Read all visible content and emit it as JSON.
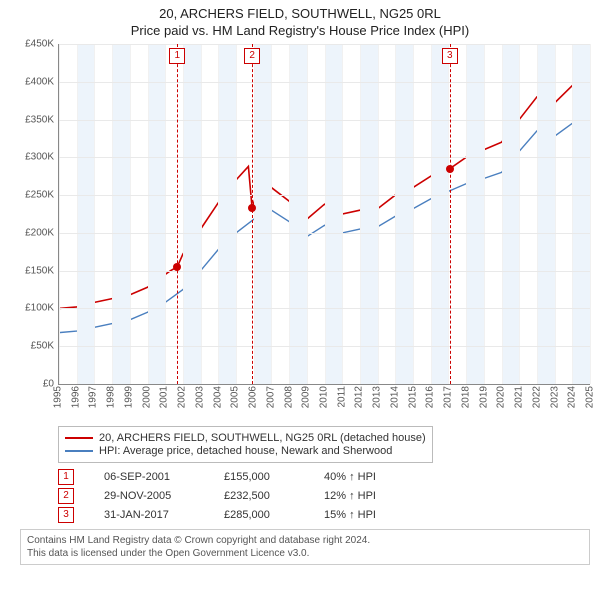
{
  "titles": {
    "line1": "20, ARCHERS FIELD, SOUTHWELL, NG25 0RL",
    "line2": "Price paid vs. HM Land Registry's House Price Index (HPI)"
  },
  "chart": {
    "type": "line",
    "background_color": "#ffffff",
    "grid_color": "#e9e9e9",
    "vgrid_color": "#f1f1f1",
    "band_color": "#edf4fb",
    "xlim": [
      1995,
      2025
    ],
    "ylim": [
      0,
      450000
    ],
    "ytick_step": 50000,
    "yticks": [
      "£0",
      "£50K",
      "£100K",
      "£150K",
      "£200K",
      "£250K",
      "£300K",
      "£350K",
      "£400K",
      "£450K"
    ],
    "xticks": [
      1995,
      1996,
      1997,
      1998,
      1999,
      2000,
      2001,
      2002,
      2003,
      2004,
      2005,
      2006,
      2007,
      2008,
      2009,
      2010,
      2011,
      2012,
      2013,
      2014,
      2015,
      2016,
      2017,
      2018,
      2019,
      2020,
      2021,
      2022,
      2023,
      2024,
      2025
    ],
    "label_fontsize": 10,
    "title_fontsize": 13,
    "line_width_red": 1.6,
    "line_width_blue": 1.4,
    "series": [
      {
        "name": "20, ARCHERS FIELD, SOUTHWELL, NG25 0RL (detached house)",
        "color": "#cc0000",
        "points": [
          [
            1995,
            100000
          ],
          [
            1996,
            102000
          ],
          [
            1997,
            108000
          ],
          [
            1998,
            113000
          ],
          [
            1999,
            118000
          ],
          [
            2000,
            128000
          ],
          [
            2001,
            145000
          ],
          [
            2001.3,
            150000
          ],
          [
            2001.68,
            155000
          ],
          [
            2002,
            172000
          ],
          [
            2003,
            205000
          ],
          [
            2004,
            240000
          ],
          [
            2005,
            270000
          ],
          [
            2005.7,
            288000
          ],
          [
            2005.91,
            232500
          ],
          [
            2006.2,
            255000
          ],
          [
            2007,
            260000
          ],
          [
            2008,
            242000
          ],
          [
            2009,
            218000
          ],
          [
            2010,
            238000
          ],
          [
            2011,
            225000
          ],
          [
            2012,
            230000
          ],
          [
            2013,
            232000
          ],
          [
            2014,
            250000
          ],
          [
            2015,
            260000
          ],
          [
            2016,
            275000
          ],
          [
            2017.08,
            285000
          ],
          [
            2018,
            300000
          ],
          [
            2019,
            310000
          ],
          [
            2020,
            320000
          ],
          [
            2021,
            350000
          ],
          [
            2022,
            380000
          ],
          [
            2023,
            372000
          ],
          [
            2024,
            395000
          ],
          [
            2025,
            405000
          ]
        ]
      },
      {
        "name": "HPI: Average price, detached house, Newark and Sherwood",
        "color": "#4a7fbf",
        "points": [
          [
            1995,
            68000
          ],
          [
            1996,
            70000
          ],
          [
            1997,
            75000
          ],
          [
            1998,
            80000
          ],
          [
            1999,
            85000
          ],
          [
            2000,
            95000
          ],
          [
            2001,
            108000
          ],
          [
            2002,
            125000
          ],
          [
            2003,
            150000
          ],
          [
            2004,
            178000
          ],
          [
            2005,
            200000
          ],
          [
            2006,
            218000
          ],
          [
            2007,
            230000
          ],
          [
            2008,
            215000
          ],
          [
            2009,
            195000
          ],
          [
            2010,
            210000
          ],
          [
            2011,
            200000
          ],
          [
            2012,
            205000
          ],
          [
            2013,
            208000
          ],
          [
            2014,
            222000
          ],
          [
            2015,
            232000
          ],
          [
            2016,
            245000
          ],
          [
            2017,
            255000
          ],
          [
            2018,
            265000
          ],
          [
            2019,
            272000
          ],
          [
            2020,
            280000
          ],
          [
            2021,
            308000
          ],
          [
            2022,
            335000
          ],
          [
            2023,
            328000
          ],
          [
            2024,
            345000
          ],
          [
            2025,
            355000
          ]
        ]
      }
    ],
    "markers": [
      {
        "idx": "1",
        "x": 2001.68,
        "y": 155000
      },
      {
        "idx": "2",
        "x": 2005.91,
        "y": 232500
      },
      {
        "idx": "3",
        "x": 2017.08,
        "y": 285000
      }
    ]
  },
  "legend": {
    "series1": "20, ARCHERS FIELD, SOUTHWELL, NG25 0RL (detached house)",
    "series2": "HPI: Average price, detached house, Newark and Sherwood",
    "color1": "#cc0000",
    "color2": "#4a7fbf"
  },
  "events": [
    {
      "idx": "1",
      "date": "06-SEP-2001",
      "price": "£155,000",
      "pct": "40% ↑ HPI"
    },
    {
      "idx": "2",
      "date": "29-NOV-2005",
      "price": "£232,500",
      "pct": "12% ↑ HPI"
    },
    {
      "idx": "3",
      "date": "31-JAN-2017",
      "price": "£285,000",
      "pct": "15% ↑ HPI"
    }
  ],
  "attribution": {
    "line1": "Contains HM Land Registry data © Crown copyright and database right 2024.",
    "line2": "This data is licensed under the Open Government Licence v3.0."
  }
}
